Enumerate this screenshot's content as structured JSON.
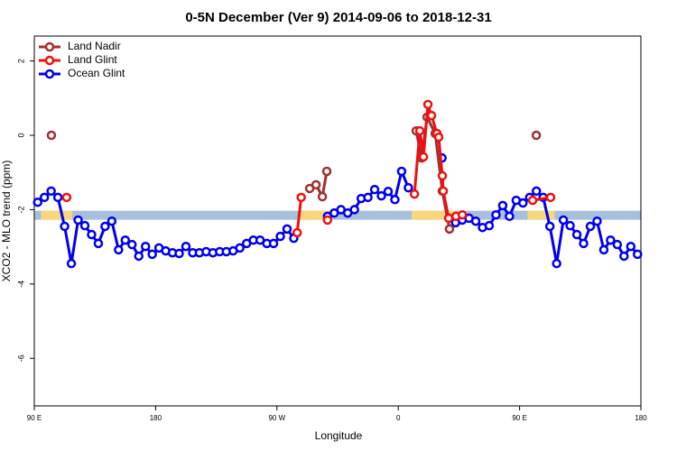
{
  "chart_data": {
    "type": "line",
    "title": "0-5N December (Ver 9)   2014-09-06 to 2018-12-31",
    "x_label": "Longitude",
    "y_label": "XCO2 - MLO trend (ppm)",
    "xlim": [
      90,
      540
    ],
    "ylim": [
      -7.28,
      2.67
    ],
    "xticks": [
      {
        "value": 90,
        "label": "90 E"
      },
      180,
      {
        "value": 270,
        "label": "90 W"
      },
      {
        "value": 360,
        "label": "0"
      },
      {
        "value": 450,
        "label": "90 E"
      },
      {
        "value": 540,
        "label": "180"
      }
    ],
    "yticks": [
      -6,
      -4,
      -2,
      0,
      2
    ],
    "legend_position": "top-left",
    "band_y": -2.15,
    "band_color": "#a8bfdc",
    "land_color": "#f8d77c",
    "land_bands": [
      [
        95,
        118
      ],
      [
        286,
        309
      ],
      [
        370,
        410
      ],
      [
        456,
        476
      ]
    ],
    "series": [
      {
        "name": "Ocean Glint",
        "color": "#0000ee",
        "x": [
          92.5,
          97.5,
          102.5,
          107.5,
          112.5,
          117.5,
          122.5,
          127.5,
          132.5,
          137.5,
          142.5,
          147.5,
          152.5,
          157.5,
          162.5,
          167.5,
          172.5,
          177.5,
          182.5,
          187.5,
          192.5,
          197.5,
          202.5,
          207.5,
          212.5,
          217.5,
          222.5,
          227.5,
          232.5,
          237.5,
          242.5,
          247.5,
          252.5,
          257.5,
          262.5,
          267.5,
          272.5,
          277.5,
          282.5,
          295,
          307.5,
          312.5,
          317.5,
          322.5,
          327.5,
          332.5,
          337.5,
          342.5,
          347.5,
          352.5,
          357.5,
          362.5,
          367.5,
          380,
          392.5,
          397.5,
          402.5,
          407.5,
          412.5,
          417.5,
          422.5,
          427.5,
          432.5,
          437.5,
          442.5,
          447.5,
          452.5,
          457.5,
          462.5,
          467.5,
          472.5,
          477.5,
          482.5,
          487.5,
          492.5,
          497.5,
          502.5,
          507.5,
          512.5,
          517.5,
          522.5,
          527.5,
          532.5,
          537.5
        ],
        "values": [
          -1.8,
          -1.67,
          -1.5,
          -1.67,
          -2.45,
          -3.45,
          -2.28,
          -2.43,
          -2.67,
          -2.91,
          -2.45,
          -2.31,
          -3.08,
          -2.82,
          -2.94,
          -3.25,
          -2.99,
          -3.2,
          -3.03,
          -3.11,
          -3.16,
          -3.18,
          -2.99,
          -3.16,
          -3.16,
          -3.13,
          -3.16,
          -3.13,
          -3.13,
          -3.11,
          -3.03,
          -2.91,
          -2.82,
          -2.82,
          -2.91,
          -2.91,
          -2.72,
          -2.52,
          -2.77,
          null,
          -2.18,
          -2.09,
          -2.0,
          -2.09,
          -2.0,
          -1.7,
          -1.67,
          -1.46,
          -1.63,
          -1.51,
          -1.73,
          -0.97,
          -1.41,
          null,
          -0.61,
          null,
          -2.35,
          -2.28,
          -2.23,
          -2.31,
          -2.48,
          -2.43,
          -2.14,
          -1.89,
          -2.18,
          -1.75,
          -1.82,
          -1.67,
          -1.5,
          -1.67,
          -2.45,
          -3.45,
          -2.28,
          -2.43,
          -2.67,
          -2.91,
          -2.45,
          -2.31,
          -3.08,
          -2.82,
          -2.94,
          -3.25,
          -2.99,
          -3.2
        ]
      },
      {
        "name": "Land Nadir",
        "color": "#a03030",
        "x": [
          102.7,
          200,
          294.3,
          299,
          303.7,
          307,
          340,
          373.3,
          377.3,
          381.4,
          387.4,
          392.7,
          398,
          430,
          462.4
        ],
        "values": [
          0.0,
          null,
          -1.43,
          -1.33,
          -1.65,
          -0.97,
          null,
          0.12,
          -0.61,
          0.49,
          0.05,
          -1.5,
          -2.52,
          null,
          0.0
        ]
      },
      {
        "name": "Land Glint",
        "color": "#ee1111",
        "x": [
          114,
          200,
          285,
          288,
          298,
          307.5,
          340,
          372,
          376,
          378.7,
          382,
          384.7,
          388.7,
          390,
          392.7,
          393.4,
          397.4,
          402.8,
          407.5,
          430,
          459.7,
          473
        ],
        "values": [
          -1.67,
          null,
          -2.62,
          -1.67,
          null,
          -2.28,
          null,
          -1.58,
          0.12,
          -0.58,
          0.83,
          0.53,
          0.05,
          -0.05,
          -1.09,
          -1.5,
          -2.23,
          -2.18,
          -2.14,
          null,
          -1.75,
          -1.67
        ]
      }
    ]
  }
}
